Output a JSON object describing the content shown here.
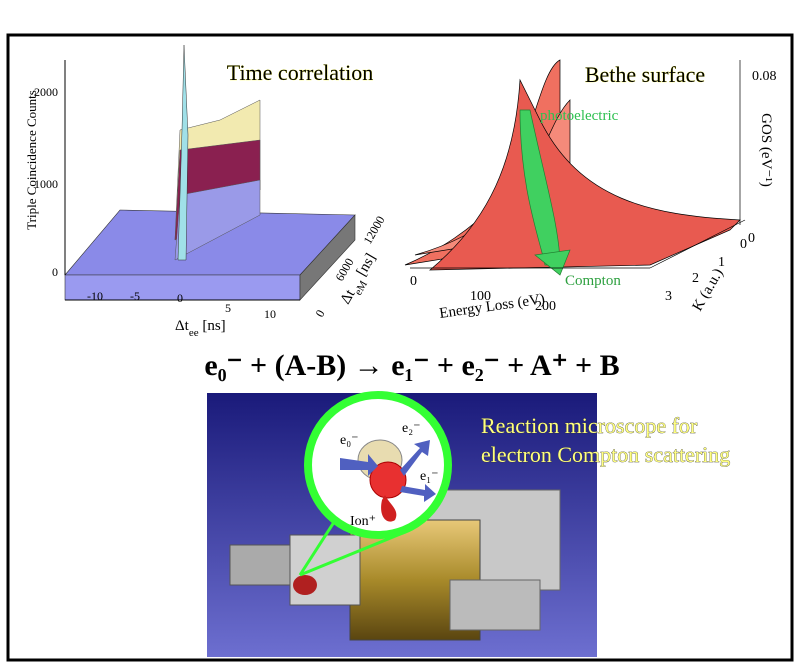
{
  "time_panel": {
    "title": "Time correlation",
    "y_label": "Triple Coincidence Counts",
    "y_ticks": [
      "0",
      "1000",
      "2000"
    ],
    "x_ticks": [
      "-10",
      "-5",
      "0",
      "5",
      "10"
    ],
    "x_label": {
      "main": "Δt",
      "sub": "ee",
      "unit": " [ns]"
    },
    "z_label": {
      "main": "Δt",
      "sub": "eM",
      "unit": " [ns]"
    },
    "z_ticks": [
      "0",
      "6000",
      "12000"
    ]
  },
  "bethe_panel": {
    "title": "Bethe surface",
    "photoelectric": "photoelectric",
    "compton": "Compton",
    "y_label": "GOS (eV⁻¹)",
    "y_ticks": [
      "0",
      "0.08"
    ],
    "x_label": "Energy Loss (eV)",
    "x_ticks": [
      "0",
      "100",
      "200"
    ],
    "k_label": "K (a.u.)",
    "k_ticks": [
      "0",
      "1",
      "2",
      "3"
    ]
  },
  "equation": "e₀⁻ + (A-B) → e₁⁻ + e₂⁻ + A⁺ + B",
  "microscope": {
    "caption": [
      "Reaction microscope for",
      "electron Compton scattering"
    ],
    "labels": {
      "e0": "e₀⁻",
      "e2": "e₂⁻",
      "e1": "e₁⁻",
      "ion": "Ion⁺"
    }
  }
}
